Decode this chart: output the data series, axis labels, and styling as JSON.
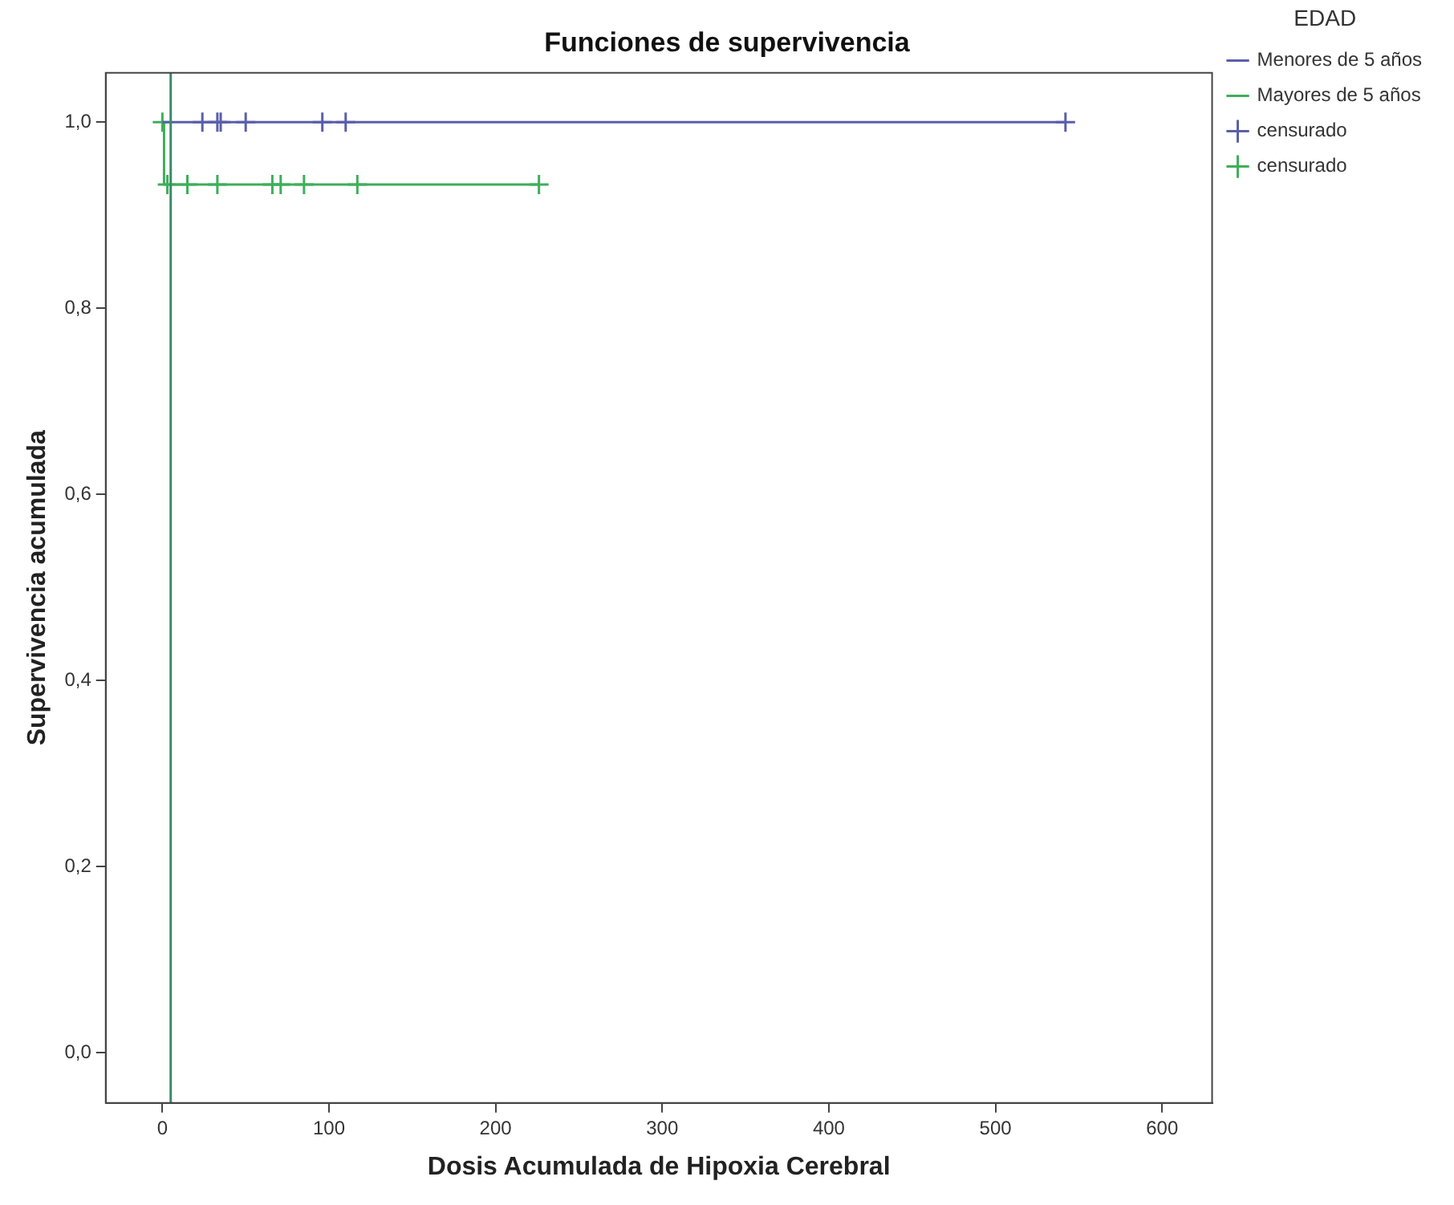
{
  "chart_data": {
    "type": "step",
    "title": "Funciones de supervivencia",
    "xlabel": "Dosis Acumulada de Hipoxia Cerebral",
    "ylabel": "Supervivencia acumulada",
    "legend_title": "EDAD",
    "xlim": [
      -34,
      630
    ],
    "xticks": [
      0,
      100,
      200,
      300,
      400,
      500,
      600
    ],
    "ylim": [
      -0.054,
      1.053
    ],
    "yticks": [
      {
        "value": 0,
        "label": "0,0"
      },
      {
        "value": 0.2,
        "label": "0,2"
      },
      {
        "value": 0.4,
        "label": "0,4"
      },
      {
        "value": 0.6,
        "label": "0,6"
      },
      {
        "value": 0.8,
        "label": "0,8"
      },
      {
        "value": 1,
        "label": "1,0"
      }
    ],
    "series": [
      {
        "name": "Menores de 5 años",
        "type": "step",
        "color": "#5a5fa8",
        "x": [
          0,
          542
        ],
        "values": [
          1,
          1
        ]
      },
      {
        "name": "Mayores de 5 años",
        "type": "step",
        "color": "#3fae5a",
        "x": [
          0,
          1,
          226
        ],
        "values": [
          1,
          0.933,
          0.933
        ]
      },
      {
        "name": "censurado",
        "type": "scatter",
        "marker": "cross",
        "color": "#5a5fa8",
        "x": [
          24,
          33,
          35,
          50,
          96,
          110,
          542
        ],
        "values": [
          1,
          1,
          1,
          1,
          1,
          1,
          1
        ]
      },
      {
        "name": "censurado",
        "type": "scatter",
        "marker": "cross",
        "color": "#3fae5a",
        "x": [
          0,
          3,
          15,
          33,
          66,
          71,
          85,
          117,
          226
        ],
        "values": [
          1,
          0.933,
          0.933,
          0.933,
          0.933,
          0.933,
          0.933,
          0.933,
          0.933
        ]
      }
    ],
    "ref_lines": [
      {
        "axis": "x",
        "value": 5,
        "color": "#3a8a6a"
      }
    ],
    "grid": false,
    "legend": "top right"
  }
}
